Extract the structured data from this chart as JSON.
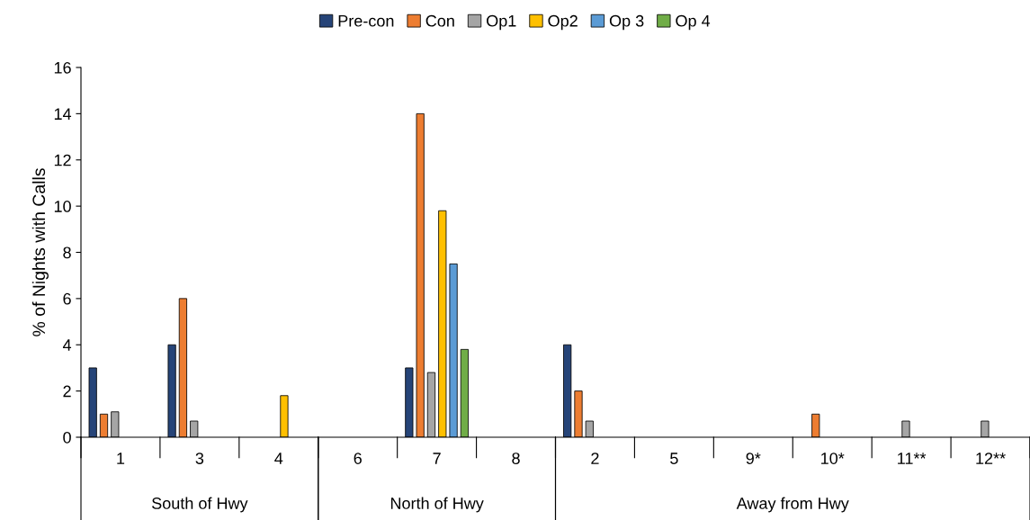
{
  "chart_data": {
    "type": "bar",
    "ylabel": "% of Nights with Calls",
    "categories": [
      "1",
      "3",
      "4",
      "6",
      "7",
      "8",
      "2",
      "5",
      "9*",
      "10*",
      "11**",
      "12**"
    ],
    "series": [
      {
        "name": "Pre-con",
        "color": "#264478",
        "values": [
          3,
          4,
          0,
          0,
          3,
          0,
          4,
          0,
          0,
          0,
          0,
          0
        ]
      },
      {
        "name": "Con",
        "color": "#ed7d31",
        "values": [
          1,
          6,
          0,
          0,
          14,
          0,
          2,
          0,
          0,
          1,
          0,
          0
        ]
      },
      {
        "name": "Op1",
        "color": "#a5a5a5",
        "values": [
          1.1,
          0.7,
          0,
          0,
          2.8,
          0,
          0.7,
          0,
          0,
          0,
          0.7,
          0.7
        ]
      },
      {
        "name": "Op2",
        "color": "#ffc000",
        "values": [
          0,
          0,
          1.8,
          0,
          9.8,
          0,
          0,
          0,
          0,
          0,
          0,
          0
        ]
      },
      {
        "name": "Op 3",
        "color": "#5b9bd5",
        "values": [
          0,
          0,
          0,
          0,
          7.5,
          0,
          0,
          0,
          0,
          0,
          0,
          0
        ]
      },
      {
        "name": "Op 4",
        "color": "#70ad47",
        "values": [
          0,
          0,
          0,
          0,
          3.8,
          0,
          0,
          0,
          0,
          0,
          0,
          0
        ]
      }
    ],
    "annotations": [
      "South of Hwy",
      "North of Hwy",
      "Away from Hwy"
    ],
    "ylim": [
      0,
      16
    ],
    "yticks": [
      0,
      2,
      4,
      6,
      8,
      10,
      12,
      14,
      16
    ],
    "grid": false,
    "legend": "top"
  }
}
